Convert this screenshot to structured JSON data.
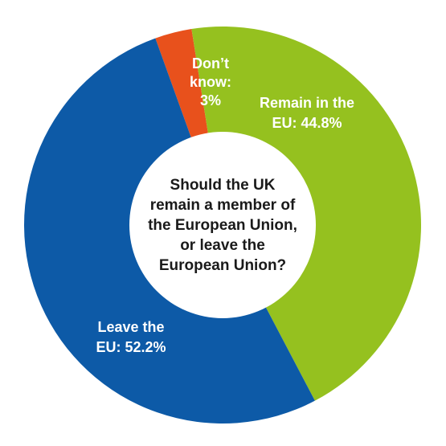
{
  "chart_data": {
    "type": "pie",
    "style": "donut",
    "title": "Should the UK remain a member of the European Union, or leave the European Union?",
    "title_lines": [
      "Should the UK",
      "remain a member of",
      "the European Union,",
      "or leave the",
      "European Union?"
    ],
    "slices": [
      {
        "key": "dont-know",
        "label": "Don't know: 3%",
        "label_lines": [
          "Don’t",
          "know:",
          "3%"
        ],
        "value": 3.0,
        "color": "#e8511c"
      },
      {
        "key": "remain",
        "label": "Remain in the EU: 44.8%",
        "label_lines": [
          "Remain in the",
          "EU: 44.8%"
        ],
        "value": 44.8,
        "color": "#95c11f"
      },
      {
        "key": "leave",
        "label": "Leave the EU: 52.2%",
        "label_lines": [
          "Leave the",
          "EU: 52.2%"
        ],
        "value": 52.2,
        "color": "#0d5aa7"
      }
    ],
    "legend": "none"
  }
}
